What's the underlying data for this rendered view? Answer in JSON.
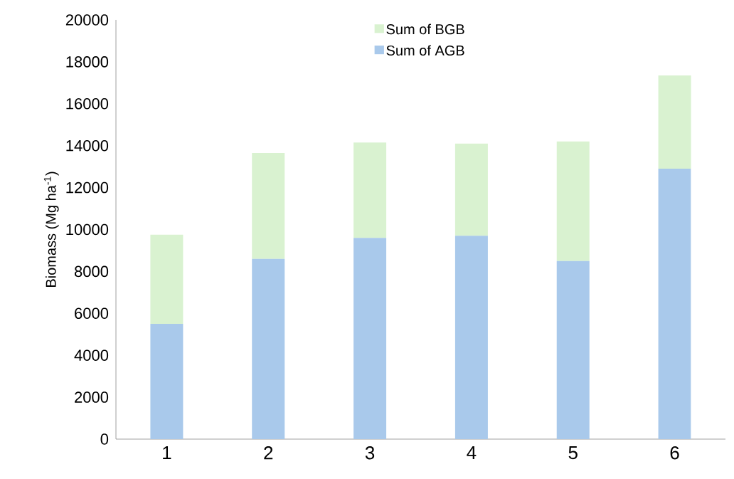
{
  "chart_data": {
    "type": "bar",
    "stacked": true,
    "ylabel": "Biomass (Mg ha$^{-1}$)",
    "categories": [
      "1",
      "2",
      "3",
      "4",
      "5",
      "6"
    ],
    "series": [
      {
        "name": "Sum of AGB",
        "color": "#a9c9eb",
        "values": [
          5500,
          8600,
          9600,
          9700,
          8500,
          12900
        ]
      },
      {
        "name": "Sum of BGB",
        "color": "#d9f2d0",
        "values": [
          4250,
          5050,
          4550,
          4400,
          5700,
          4450
        ]
      }
    ],
    "ylim": [
      0,
      20000
    ],
    "yticks": [
      0,
      2000,
      4000,
      6000,
      8000,
      10000,
      12000,
      14000,
      16000,
      18000,
      20000
    ],
    "grid": false,
    "legend": "top"
  }
}
